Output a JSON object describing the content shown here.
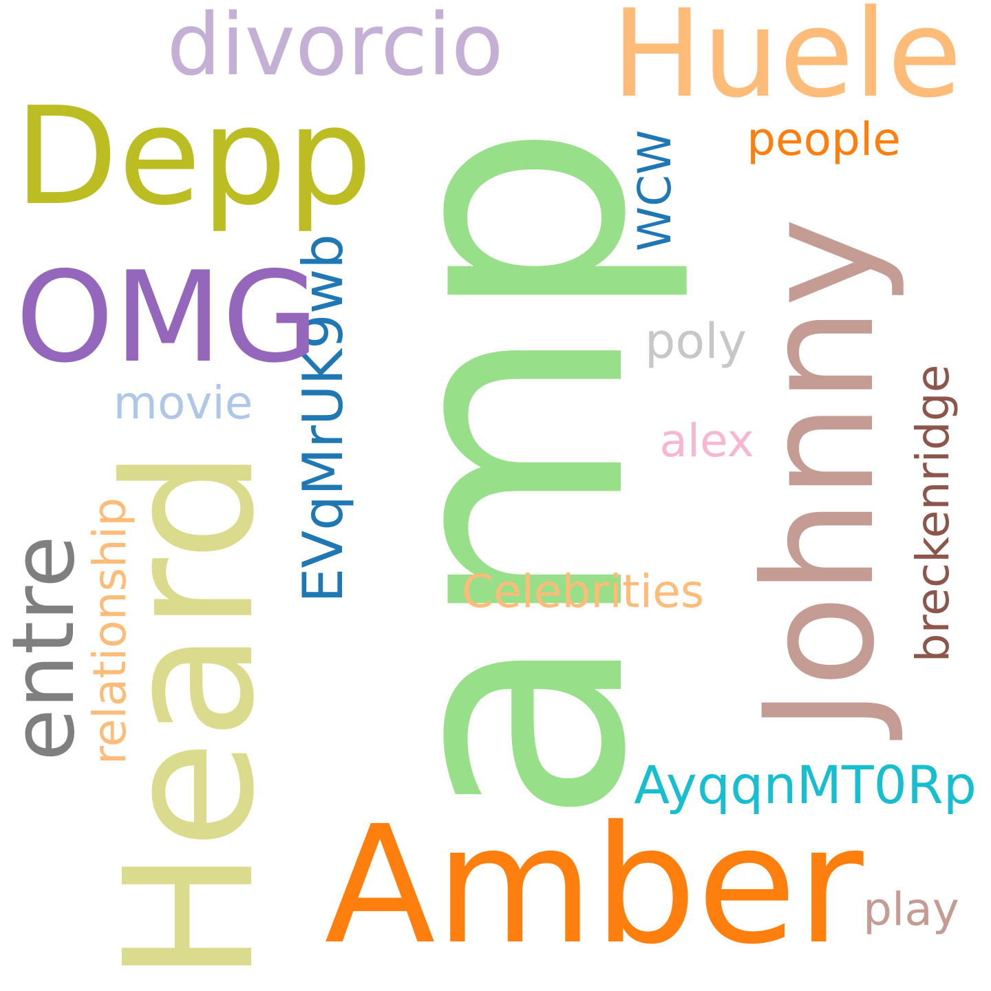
{
  "words": {
    "amp": {
      "text": "amp",
      "color": "#98df8a",
      "orientation": "vertical"
    },
    "amber": {
      "text": "Amber",
      "color": "#ff7f0e",
      "orientation": "horizontal"
    },
    "heard": {
      "text": "Heard",
      "color": "#dbdb8d",
      "orientation": "vertical"
    },
    "huele": {
      "text": "Huele",
      "color": "#ffbb78",
      "orientation": "horizontal"
    },
    "johnny": {
      "text": "Johnny",
      "color": "#c49c94",
      "orientation": "vertical"
    },
    "depp": {
      "text": "Depp",
      "color": "#bcbd22",
      "orientation": "horizontal"
    },
    "divorcio": {
      "text": "divorcio",
      "color": "#c5b0d5",
      "orientation": "horizontal"
    },
    "omg": {
      "text": "OMG",
      "color": "#9467bd",
      "orientation": "horizontal"
    },
    "entre": {
      "text": "entre",
      "color": "#7f7f7f",
      "orientation": "vertical"
    },
    "evqmruk9wb": {
      "text": "EVqMrUK9wb",
      "color": "#1f77b4",
      "orientation": "vertical"
    },
    "relationship": {
      "text": "relationship",
      "color": "#ffbb78",
      "orientation": "vertical"
    },
    "breckenridge": {
      "text": "breckenridge",
      "color": "#8c564b",
      "orientation": "vertical"
    },
    "ayqqnmt0rp": {
      "text": "AyqqnMT0Rp",
      "color": "#17becf",
      "orientation": "horizontal"
    },
    "celebrities": {
      "text": "Celebrities",
      "color": "#ffbb78",
      "orientation": "horizontal"
    },
    "people": {
      "text": "people",
      "color": "#ff7f0e",
      "orientation": "horizontal"
    },
    "wcw": {
      "text": "WCW",
      "color": "#1f77b4",
      "orientation": "vertical"
    },
    "poly": {
      "text": "poly",
      "color": "#c7c7c7",
      "orientation": "horizontal"
    },
    "movie": {
      "text": "movie",
      "color": "#aec7e8",
      "orientation": "horizontal"
    },
    "alex": {
      "text": "alex",
      "color": "#f7b6d2",
      "orientation": "horizontal"
    },
    "play": {
      "text": "play",
      "color": "#c49c94",
      "orientation": "horizontal"
    }
  }
}
